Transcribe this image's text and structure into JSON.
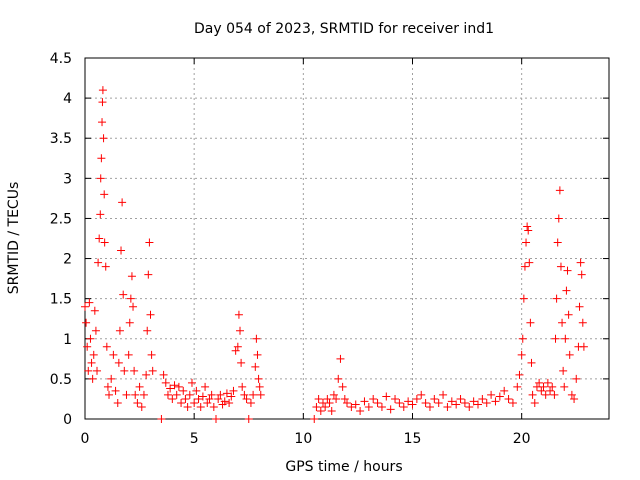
{
  "chart_data": {
    "type": "scatter",
    "title": "Day 054 of 2023, SRMTID for receiver ind1",
    "xlabel": "GPS time / hours",
    "ylabel": "SRMTID / TECUs",
    "xlim": [
      0,
      24
    ],
    "ylim": [
      0,
      4.5
    ],
    "xticks": [
      0,
      5,
      10,
      15,
      20
    ],
    "yticks": [
      0,
      0.5,
      1,
      1.5,
      2,
      2.5,
      3,
      3.5,
      4,
      4.5
    ],
    "grid": true,
    "marker": "+",
    "series": [
      {
        "name": "SRMTID",
        "color": "#ff0000",
        "points": [
          [
            0.0,
            1.4
          ],
          [
            0.05,
            1.2
          ],
          [
            0.1,
            0.9
          ],
          [
            0.15,
            0.6
          ],
          [
            0.2,
            1.45
          ],
          [
            0.25,
            1.0
          ],
          [
            0.3,
            0.7
          ],
          [
            0.35,
            0.5
          ],
          [
            0.4,
            0.8
          ],
          [
            0.45,
            1.35
          ],
          [
            0.5,
            1.1
          ],
          [
            0.55,
            0.6
          ],
          [
            0.6,
            1.95
          ],
          [
            0.65,
            2.25
          ],
          [
            0.7,
            2.55
          ],
          [
            0.72,
            3.0
          ],
          [
            0.75,
            3.25
          ],
          [
            0.78,
            3.7
          ],
          [
            0.8,
            3.95
          ],
          [
            0.82,
            4.1
          ],
          [
            0.85,
            3.5
          ],
          [
            0.88,
            2.8
          ],
          [
            0.9,
            2.2
          ],
          [
            0.95,
            1.9
          ],
          [
            1.0,
            0.9
          ],
          [
            1.05,
            0.4
          ],
          [
            1.1,
            0.3
          ],
          [
            1.2,
            0.5
          ],
          [
            1.3,
            0.8
          ],
          [
            1.4,
            0.35
          ],
          [
            1.5,
            0.2
          ],
          [
            1.55,
            0.7
          ],
          [
            1.6,
            1.1
          ],
          [
            1.65,
            2.1
          ],
          [
            1.7,
            2.7
          ],
          [
            1.75,
            1.55
          ],
          [
            1.8,
            0.6
          ],
          [
            1.9,
            0.3
          ],
          [
            2.0,
            0.8
          ],
          [
            2.05,
            1.2
          ],
          [
            2.1,
            1.5
          ],
          [
            2.15,
            1.78
          ],
          [
            2.2,
            1.4
          ],
          [
            2.25,
            0.6
          ],
          [
            2.3,
            0.3
          ],
          [
            2.4,
            0.2
          ],
          [
            2.5,
            0.4
          ],
          [
            2.6,
            0.15
          ],
          [
            2.7,
            0.3
          ],
          [
            2.8,
            0.55
          ],
          [
            2.85,
            1.1
          ],
          [
            2.9,
            1.8
          ],
          [
            2.95,
            2.2
          ],
          [
            3.0,
            1.3
          ],
          [
            3.05,
            0.8
          ],
          [
            3.1,
            0.6
          ],
          [
            3.5,
            0.0
          ],
          [
            3.6,
            0.55
          ],
          [
            3.7,
            0.45
          ],
          [
            3.8,
            0.3
          ],
          [
            3.9,
            0.38
          ],
          [
            4.0,
            0.25
          ],
          [
            4.1,
            0.42
          ],
          [
            4.2,
            0.3
          ],
          [
            4.3,
            0.4
          ],
          [
            4.4,
            0.2
          ],
          [
            4.5,
            0.35
          ],
          [
            4.6,
            0.25
          ],
          [
            4.7,
            0.15
          ],
          [
            4.8,
            0.3
          ],
          [
            4.9,
            0.45
          ],
          [
            5.0,
            0.2
          ],
          [
            5.1,
            0.35
          ],
          [
            5.2,
            0.25
          ],
          [
            5.3,
            0.15
          ],
          [
            5.4,
            0.28
          ],
          [
            5.5,
            0.4
          ],
          [
            5.6,
            0.2
          ],
          [
            5.7,
            0.25
          ],
          [
            5.8,
            0.3
          ],
          [
            5.9,
            0.15
          ],
          [
            6.0,
            0.0
          ],
          [
            6.1,
            0.25
          ],
          [
            6.2,
            0.3
          ],
          [
            6.3,
            0.18
          ],
          [
            6.4,
            0.22
          ],
          [
            6.5,
            0.32
          ],
          [
            6.6,
            0.2
          ],
          [
            6.7,
            0.28
          ],
          [
            6.8,
            0.35
          ],
          [
            6.9,
            0.85
          ],
          [
            7.0,
            0.9
          ],
          [
            7.05,
            1.3
          ],
          [
            7.1,
            1.1
          ],
          [
            7.15,
            0.7
          ],
          [
            7.2,
            0.4
          ],
          [
            7.3,
            0.3
          ],
          [
            7.4,
            0.25
          ],
          [
            7.5,
            0.0
          ],
          [
            7.6,
            0.2
          ],
          [
            7.7,
            0.3
          ],
          [
            7.8,
            0.65
          ],
          [
            7.85,
            1.0
          ],
          [
            7.9,
            0.8
          ],
          [
            7.95,
            0.5
          ],
          [
            8.0,
            0.4
          ],
          [
            8.05,
            0.3
          ],
          [
            10.5,
            0.0
          ],
          [
            10.6,
            0.15
          ],
          [
            10.7,
            0.25
          ],
          [
            10.8,
            0.1
          ],
          [
            10.9,
            0.2
          ],
          [
            11.0,
            0.15
          ],
          [
            11.1,
            0.25
          ],
          [
            11.2,
            0.2
          ],
          [
            11.3,
            0.1
          ],
          [
            11.4,
            0.3
          ],
          [
            11.5,
            0.25
          ],
          [
            11.6,
            0.5
          ],
          [
            11.7,
            0.75
          ],
          [
            11.8,
            0.4
          ],
          [
            11.9,
            0.25
          ],
          [
            12.0,
            0.2
          ],
          [
            12.2,
            0.15
          ],
          [
            12.4,
            0.18
          ],
          [
            12.6,
            0.1
          ],
          [
            12.8,
            0.22
          ],
          [
            13.0,
            0.15
          ],
          [
            13.2,
            0.25
          ],
          [
            13.4,
            0.2
          ],
          [
            13.6,
            0.15
          ],
          [
            13.8,
            0.28
          ],
          [
            14.0,
            0.12
          ],
          [
            14.2,
            0.25
          ],
          [
            14.4,
            0.2
          ],
          [
            14.6,
            0.15
          ],
          [
            14.8,
            0.22
          ],
          [
            15.0,
            0.18
          ],
          [
            15.2,
            0.25
          ],
          [
            15.4,
            0.3
          ],
          [
            15.6,
            0.2
          ],
          [
            15.8,
            0.15
          ],
          [
            16.0,
            0.25
          ],
          [
            16.2,
            0.2
          ],
          [
            16.4,
            0.3
          ],
          [
            16.6,
            0.15
          ],
          [
            16.8,
            0.22
          ],
          [
            17.0,
            0.18
          ],
          [
            17.2,
            0.25
          ],
          [
            17.4,
            0.2
          ],
          [
            17.6,
            0.15
          ],
          [
            17.8,
            0.22
          ],
          [
            18.0,
            0.18
          ],
          [
            18.2,
            0.25
          ],
          [
            18.4,
            0.2
          ],
          [
            18.6,
            0.3
          ],
          [
            18.8,
            0.22
          ],
          [
            19.0,
            0.28
          ],
          [
            19.2,
            0.35
          ],
          [
            19.4,
            0.25
          ],
          [
            19.6,
            0.2
          ],
          [
            19.8,
            0.4
          ],
          [
            19.9,
            0.55
          ],
          [
            20.0,
            0.8
          ],
          [
            20.05,
            1.0
          ],
          [
            20.1,
            1.5
          ],
          [
            20.15,
            1.9
          ],
          [
            20.2,
            2.2
          ],
          [
            20.25,
            2.4
          ],
          [
            20.3,
            2.35
          ],
          [
            20.35,
            1.95
          ],
          [
            20.4,
            1.2
          ],
          [
            20.45,
            0.7
          ],
          [
            20.5,
            0.3
          ],
          [
            20.6,
            0.2
          ],
          [
            20.7,
            0.4
          ],
          [
            20.8,
            0.45
          ],
          [
            20.9,
            0.35
          ],
          [
            21.0,
            0.4
          ],
          [
            21.1,
            0.3
          ],
          [
            21.2,
            0.45
          ],
          [
            21.3,
            0.35
          ],
          [
            21.4,
            0.4
          ],
          [
            21.5,
            0.3
          ],
          [
            21.55,
            1.0
          ],
          [
            21.6,
            1.5
          ],
          [
            21.65,
            2.2
          ],
          [
            21.7,
            2.5
          ],
          [
            21.75,
            2.85
          ],
          [
            21.8,
            1.9
          ],
          [
            21.85,
            1.2
          ],
          [
            21.9,
            0.6
          ],
          [
            21.95,
            0.4
          ],
          [
            22.0,
            1.0
          ],
          [
            22.05,
            1.6
          ],
          [
            22.1,
            1.85
          ],
          [
            22.15,
            1.3
          ],
          [
            22.2,
            0.8
          ],
          [
            22.3,
            0.3
          ],
          [
            22.4,
            0.25
          ],
          [
            22.5,
            0.5
          ],
          [
            22.6,
            0.9
          ],
          [
            22.65,
            1.4
          ],
          [
            22.7,
            1.95
          ],
          [
            22.75,
            1.8
          ],
          [
            22.8,
            1.2
          ],
          [
            22.85,
            0.9
          ]
        ]
      }
    ]
  }
}
